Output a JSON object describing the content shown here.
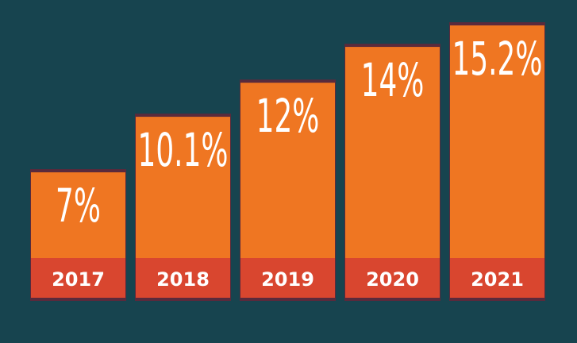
{
  "chart_data": {
    "type": "bar",
    "categories": [
      "2017",
      "2018",
      "2019",
      "2020",
      "2021"
    ],
    "values": [
      7,
      10.1,
      12,
      14,
      15.2
    ],
    "value_labels": [
      "7%",
      "10.1%",
      "12%",
      "14%",
      "15.2%"
    ],
    "title": "",
    "xlabel": "",
    "ylabel": "",
    "ylim": [
      0,
      15.2
    ],
    "grid": false,
    "legend": "none"
  },
  "colors": {
    "background": "#17444f",
    "bar": "#ef7622",
    "bar_base": "#d9462f",
    "bar_shadow": "#5a2a3c",
    "label": "#ffffff"
  }
}
